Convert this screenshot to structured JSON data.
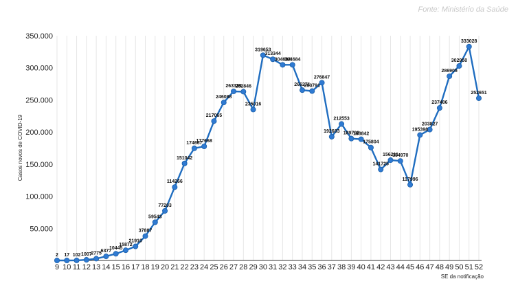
{
  "source": "Fonte: Ministério da Saúde",
  "chart_data": {
    "type": "line",
    "xlabel": "SE da notificação",
    "ylabel": "Casos novos de COVID-19",
    "ylim": [
      0,
      350000
    ],
    "yticks": [
      "",
      "50.000",
      "100.000",
      "150.000",
      "200.000",
      "250.000",
      "300.000",
      "350.000"
    ],
    "grid": "vertical",
    "line_color": "#1f6dc0",
    "marker_color": "#2f7ad2",
    "x": [
      9,
      10,
      11,
      12,
      13,
      14,
      15,
      16,
      17,
      18,
      19,
      20,
      21,
      22,
      23,
      24,
      25,
      26,
      27,
      28,
      29,
      30,
      31,
      32,
      33,
      34,
      35,
      36,
      37,
      38,
      39,
      40,
      41,
      42,
      43,
      44,
      45,
      46,
      47,
      48,
      49,
      50,
      51,
      52
    ],
    "values": [
      2,
      17,
      102,
      1007,
      2775,
      6377,
      10445,
      15872,
      21910,
      37887,
      59543,
      77203,
      114266,
      151042,
      174667,
      177668,
      217065,
      246088,
      263329,
      262846,
      235016,
      319653,
      313344,
      304684,
      304684,
      265271,
      263791,
      276847,
      192683,
      212553,
      189792,
      188842,
      175804,
      141725,
      156211,
      154970,
      117996,
      195398,
      203827,
      237486,
      286905,
      302950,
      333028,
      252651
    ],
    "data_labels": [
      "2",
      "17",
      "102",
      "1007",
      "2775",
      "6377",
      "10445",
      "15872",
      "21910",
      "37887",
      "59543",
      "77203",
      "114266",
      "151042",
      "174667",
      "177668",
      "217065",
      "246088",
      "263329",
      "262846",
      "235016",
      "319653",
      "313344",
      "304684",
      "304684",
      "265271",
      "263791",
      "276847",
      "192683",
      "212553",
      "189792",
      "188842",
      "175804",
      "141725",
      "156211",
      "154970",
      "117996",
      "195398",
      "203827",
      "237486",
      "286905",
      "302950",
      "333028",
      "252651"
    ]
  }
}
